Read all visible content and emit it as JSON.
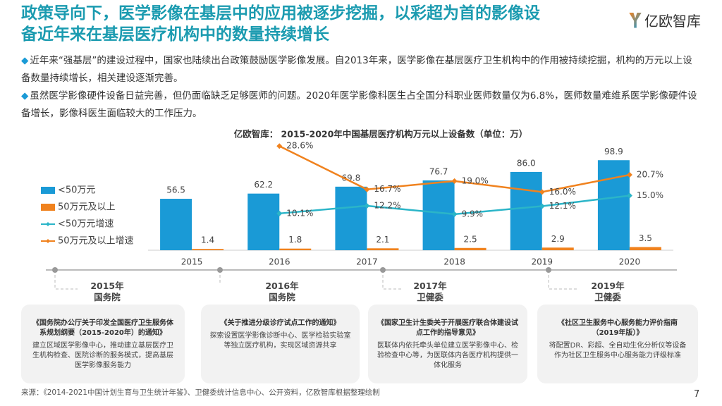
{
  "header": {
    "title_line1": "政策导向下，医学影像在基层中的应用被逐步挖掘，以彩超为首的影像设",
    "title_line2": "备近年来在基层医疗机构中的数量持续增长",
    "logo": "亿欧智库"
  },
  "bullets": [
    "近年来“强基层”的建设过程中，国家也陆续出台政策鼓励医学影像发展。自2013年来，医学影像在基层医疗卫生机构中的作用被持续挖掘，机构的万元以上设备数量持续增长，相关建设逐渐完善。",
    "虽然医学影像硬件设备日益完善，但仍面临缺乏足够医师的问题。2020年医学影像科医生占全国分科职业医师数量仅为6.8%，医师数量难维系医学影像硬件设备增长，影像科医生面临较大的工作压力。"
  ],
  "chart_data": {
    "type": "bar",
    "title": "亿欧智库： 2015-2020年中国基层医疗机构万元以上设备数（单位：万）",
    "categories": [
      "2015",
      "2016",
      "2017",
      "2018",
      "2019",
      "2020"
    ],
    "ylim": [
      0,
      120
    ],
    "y2lim": [
      0,
      30
    ],
    "series": [
      {
        "name": "<50万元",
        "type": "bar",
        "color": "#1a9ad6",
        "values": [
          56.5,
          62.2,
          69.8,
          76.7,
          86.0,
          98.9
        ],
        "value_labels": [
          "56.5",
          "62.2",
          "69.8",
          "76.7",
          "86.0",
          "98.9"
        ]
      },
      {
        "name": "50万元及以上",
        "type": "bar",
        "color": "#f0821e",
        "values": [
          1.4,
          1.8,
          2.1,
          2.5,
          2.9,
          3.5
        ],
        "value_labels": [
          "1.4",
          "1.8",
          "2.1",
          "2.5",
          "2.9",
          "3.5"
        ]
      },
      {
        "name": "<50万元增速",
        "type": "line",
        "axis": "y2",
        "color": "#2bb5c8",
        "values": [
          null,
          10.1,
          12.2,
          9.9,
          12.1,
          15.0
        ],
        "value_labels": [
          null,
          "10.1%",
          "12.2%",
          "9.9%",
          "12.1%",
          "15.0%"
        ]
      },
      {
        "name": "50万元及以上增速",
        "type": "line",
        "axis": "y2",
        "color": "#f0821e",
        "values": [
          null,
          28.6,
          16.7,
          19.0,
          16.0,
          20.7
        ],
        "value_labels": [
          null,
          "28.6%",
          "16.7%",
          "19.0%",
          "16.0%",
          "20.7%"
        ]
      }
    ]
  },
  "timeline": [
    {
      "year": "2015年",
      "org": "国务院",
      "title": "《国务院办公厅关于印发全国医疗卫生服务体系规划纲要（2015-2020年）的通知》",
      "body": "建立区域医学影像中心，推动建立基层医疗卫生机构检查、医院诊断的服务模式，提高基层医学影像服务能力"
    },
    {
      "year": "2016年",
      "org": "国务院",
      "title": "《关于推进分级诊疗试点工作的通知》",
      "body": "探索设置医学影像诊断中心、医学检验实验室等独立医疗机构，实现区域资源共享"
    },
    {
      "year": "2017年",
      "org": "卫健委",
      "title": "《国家卫生计生委关于开展医疗联合体建设试点工作的指导意见》",
      "body": "医联体内依托牵头单位建立医学影像中心、检验检查中心等，为医联体内各医疗机构提供一体化服务"
    },
    {
      "year": "2019年",
      "org": "卫健委",
      "title": "《社区卫生服务中心服务能力评价指南（2019年版）》",
      "body": "将配置DR、彩超、全自动生化分析仪等设备作为社区卫生服务中心服务能力评级标准"
    }
  ],
  "source": "来源：《2014-2021中国计划生育与卫生统计年鉴》、卫健委统计信息中心、公开资料，亿欧智库根据整理绘制",
  "page_number": 7
}
